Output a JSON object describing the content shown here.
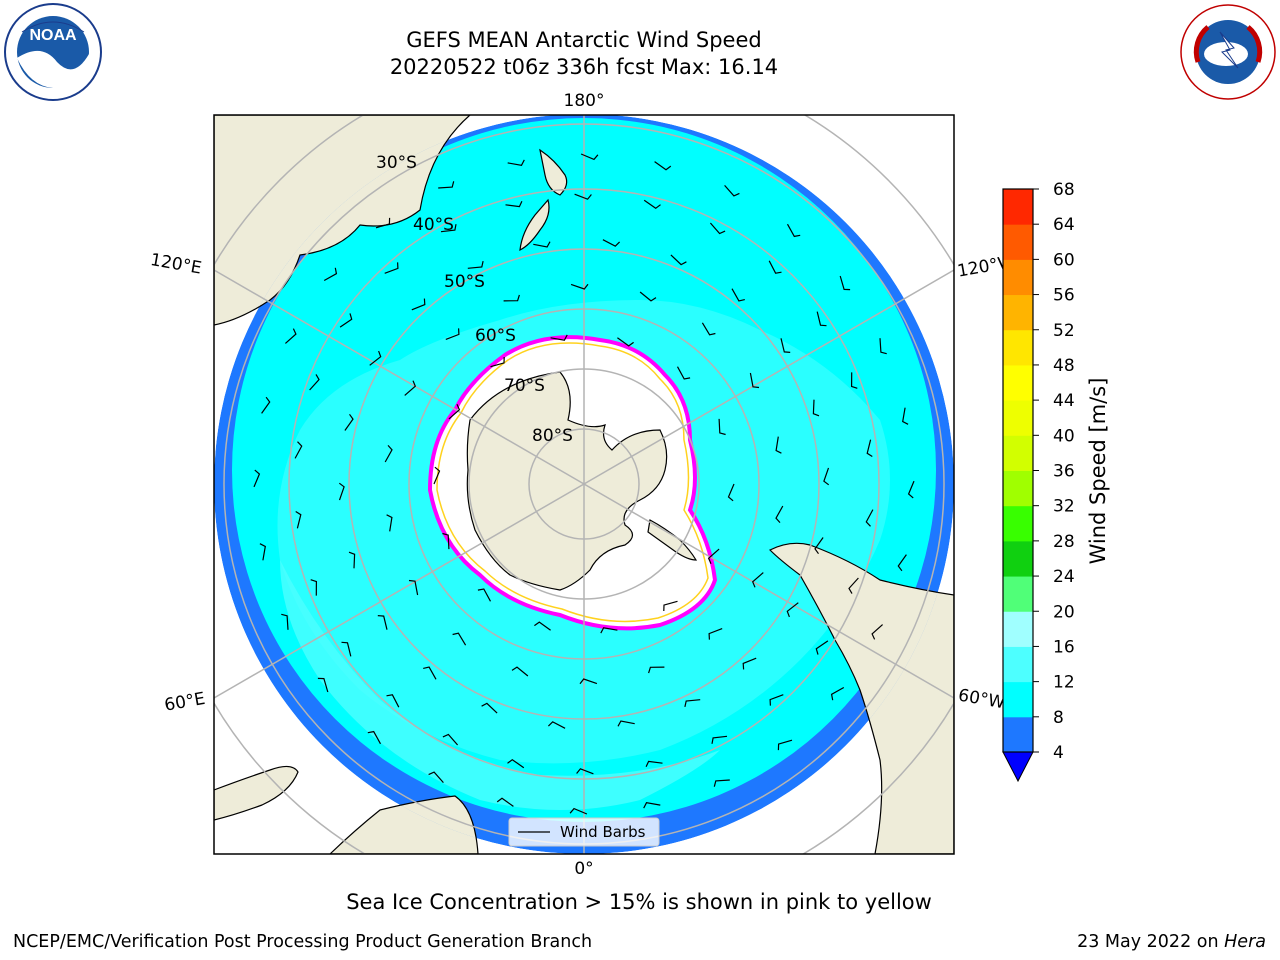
{
  "header": {
    "title": "GEFS MEAN Antarctic Wind Speed",
    "subtitle": "20220522 t06z 336h fcst   Max: 16.14"
  },
  "logos": {
    "left": {
      "icon": "noaa-logo",
      "text": "NOAA"
    },
    "right": {
      "icon": "national-weather-service-logo",
      "text": "NATIONAL WEATHER SERVICE"
    }
  },
  "map": {
    "projection": "south-polar-stereographic",
    "longitude_labels": {
      "top": "180°",
      "bottom": "0°",
      "upper_left": "120°E",
      "upper_right": "120°W",
      "lower_left": "60°E",
      "lower_right": "60°W"
    },
    "latitude_labels": [
      "30°S",
      "40°S",
      "50°S",
      "60°S",
      "70°S",
      "80°S"
    ],
    "legend_label": "Wind Barbs",
    "colors": {
      "land": "#eeecd9",
      "ocean_4_8": "#1e78ff",
      "ocean_8_12": "#00ffff",
      "ocean_12_16": "#4dffff",
      "ocean_16_20": "#a0ffff",
      "sea_ice_edge_pink": "#ff00ff",
      "sea_ice_edge_yellow": "#ffd21e",
      "grid": "#b4b4b4"
    }
  },
  "colorbar": {
    "label": "Wind Speed [m/s]",
    "ticks": [
      "4",
      "8",
      "12",
      "16",
      "20",
      "24",
      "28",
      "32",
      "36",
      "40",
      "44",
      "48",
      "52",
      "56",
      "60",
      "64",
      "68"
    ],
    "colors": [
      "#1e78ff",
      "#00ffff",
      "#4dffff",
      "#a0ffff",
      "#50ff78",
      "#10d010",
      "#38ff00",
      "#a0ff00",
      "#d2ff00",
      "#eeff00",
      "#ffff00",
      "#ffe600",
      "#ffb400",
      "#ff8c00",
      "#ff5a00",
      "#ff2800"
    ],
    "under_color": "#0000ff",
    "over_color": "#ff0000"
  },
  "footer": {
    "note": "Sea Ice Concentration > 15% is shown in pink to yellow",
    "credit_left": "NCEP/EMC/Verification Post Processing Product Generation Branch",
    "credit_right_prefix": "23 May 2022 on ",
    "credit_right_machine": "Hera"
  }
}
